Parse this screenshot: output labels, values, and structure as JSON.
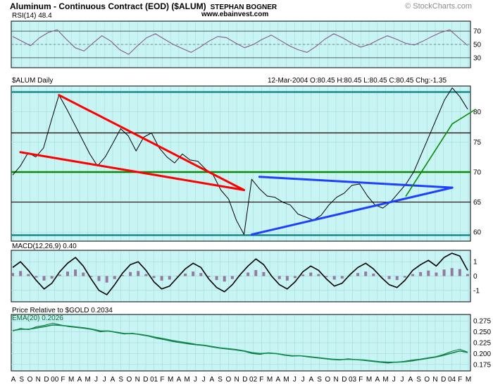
{
  "header": {
    "title": "Aluminum - Continuous Contract (EOD) ($ALUM)",
    "author": "STEPHAN BOGNER",
    "website": "www.ebainvest.com",
    "brand": "© StockCharts.com"
  },
  "colors": {
    "panel_bg": "#c9f4f4",
    "price_line": "#000000",
    "rsi_line": "#8a5a8a",
    "macd_hist": "#8a5a8a",
    "ema_line": "#0a6a3a",
    "channel_teal": "#1a8a8a",
    "support_green": "#0a8a0a",
    "trend_red": "#ff0000",
    "trend_blue": "#2040ff"
  },
  "chart_data": [
    {
      "type": "line",
      "panel": "rsi",
      "label": "RSI(14) 48.4",
      "indicator": "RSI(14)",
      "last_value": 48.4,
      "y_ticks": [
        70,
        50,
        30
      ],
      "ylim": [
        15,
        85
      ],
      "series": [
        {
          "values": [
            62,
            55,
            48,
            60,
            68,
            72,
            58,
            45,
            40,
            52,
            63,
            55,
            42,
            35,
            48,
            60,
            66,
            58,
            50,
            44,
            38,
            46,
            55,
            62,
            60,
            52,
            45,
            50,
            58,
            64,
            56,
            48,
            42,
            38,
            47,
            58,
            66,
            60,
            52,
            46,
            50,
            57,
            63,
            58,
            52,
            49,
            55,
            62,
            68,
            72,
            60,
            48.4
          ]
        }
      ]
    },
    {
      "type": "line",
      "panel": "price",
      "label": "$ALUM Daily",
      "ohlc": "12-Mar-2004 O:80.45 H:80.45 L:80.45 C:80.45 Chg:-1.35",
      "y_ticks": [
        80,
        75,
        70,
        65,
        60
      ],
      "ylim": [
        58.5,
        84.3
      ],
      "horizontal_lines": [
        {
          "value": 83.3,
          "color": "teal"
        },
        {
          "value": 76.5,
          "color": "black"
        },
        {
          "value": 70.0,
          "color": "green"
        },
        {
          "value": 65.0,
          "color": "black"
        },
        {
          "value": 59.5,
          "color": "teal"
        }
      ],
      "x_labels": [
        "A",
        "S",
        "O",
        "N",
        "D",
        "00",
        "F",
        "M",
        "A",
        "M",
        "J",
        "J",
        "A",
        "S",
        "O",
        "N",
        "D",
        "01",
        "F",
        "M",
        "A",
        "M",
        "J",
        "J",
        "A",
        "S",
        "O",
        "N",
        "D",
        "02",
        "F",
        "M",
        "A",
        "M",
        "J",
        "J",
        "A",
        "S",
        "O",
        "N",
        "D",
        "03",
        "F",
        "M",
        "A",
        "M",
        "J",
        "J",
        "A",
        "S",
        "O",
        "N",
        "D",
        "04",
        "F",
        "M"
      ],
      "series": [
        {
          "name": "$ALUM",
          "values": [
            69.5,
            71.0,
            73.2,
            72.5,
            74.0,
            78.5,
            82.8,
            80.5,
            78.0,
            75.5,
            73.0,
            71.0,
            72.5,
            74.8,
            77.2,
            76.0,
            73.5,
            75.8,
            76.5,
            74.0,
            72.5,
            71.5,
            73.0,
            72.0,
            71.8,
            70.5,
            69.5,
            67.0,
            65.5,
            62.0,
            59.6,
            68.8,
            67.2,
            66.0,
            65.8,
            65.0,
            64.5,
            63.0,
            62.5,
            62.0,
            62.8,
            64.5,
            65.8,
            66.5,
            67.8,
            68.0,
            66.0,
            64.5,
            64.0,
            65.0,
            66.5,
            68.0,
            70.0,
            73.0,
            76.0,
            79.0,
            82.0,
            84.0,
            82.5,
            80.45
          ]
        }
      ],
      "trendlines": [
        {
          "color": "red",
          "from": [
            1,
            73.3
          ],
          "to": [
            30,
            67.0
          ]
        },
        {
          "color": "red",
          "from": [
            6,
            82.8
          ],
          "to": [
            30,
            67.0
          ]
        },
        {
          "color": "blue",
          "from": [
            32,
            69.2
          ],
          "to": [
            57,
            67.4
          ]
        },
        {
          "color": "blue",
          "from": [
            31,
            59.6
          ],
          "to": [
            57,
            67.4
          ]
        },
        {
          "color": "green",
          "from": [
            51,
            66.0
          ],
          "to": [
            57,
            78.0
          ]
        },
        {
          "color": "green",
          "from": [
            57,
            78.0
          ],
          "to": [
            60,
            80.4
          ]
        }
      ]
    },
    {
      "type": "line",
      "panel": "macd",
      "label": "MACD(12,26,9) 0.40",
      "indicator": "MACD(12,26,9)",
      "last_value": 0.4,
      "y_ticks": [
        1,
        0,
        -1
      ],
      "ylim": [
        -1.8,
        1.8
      ],
      "series": [
        {
          "values": [
            0.6,
            1.0,
            0.4,
            -0.3,
            -0.9,
            -0.5,
            0.3,
            0.9,
            1.3,
            0.7,
            -0.2,
            -1.0,
            -1.3,
            -0.6,
            0.2,
            0.8,
            1.0,
            0.4,
            -0.4,
            -0.9,
            -0.7,
            -0.1,
            0.5,
            0.9,
            0.6,
            -0.2,
            -0.8,
            -1.1,
            -0.6,
            0.1,
            0.7,
            1.2,
            0.8,
            0.0,
            -0.6,
            -0.9,
            -0.4,
            0.3,
            0.7,
            0.4,
            -0.2,
            -0.7,
            -0.5,
            0.1,
            0.6,
            0.9,
            0.5,
            -0.1,
            -0.6,
            -0.8,
            -0.3,
            0.4,
            0.8,
            1.1,
            0.7,
            1.3,
            1.6,
            1.4,
            0.4
          ]
        }
      ]
    },
    {
      "type": "line",
      "panel": "relative",
      "label": "Price Relative to $GOLD 0.2034",
      "ema_label": "EMA(20) 0.2026",
      "y_ticks": [
        0.275,
        0.25,
        0.225,
        0.2,
        0.175
      ],
      "ylim": [
        0.16,
        0.29
      ],
      "series": [
        {
          "name": "Price Relative to $GOLD",
          "values": [
            0.252,
            0.258,
            0.255,
            0.262,
            0.265,
            0.27,
            0.266,
            0.262,
            0.26,
            0.258,
            0.255,
            0.25,
            0.252,
            0.248,
            0.245,
            0.247,
            0.243,
            0.24,
            0.235,
            0.232,
            0.228,
            0.225,
            0.222,
            0.22,
            0.218,
            0.215,
            0.212,
            0.21,
            0.208,
            0.205,
            0.2,
            0.198,
            0.202,
            0.2,
            0.196,
            0.194,
            0.195,
            0.192,
            0.19,
            0.188,
            0.186,
            0.185,
            0.188,
            0.186,
            0.184,
            0.182,
            0.18,
            0.178,
            0.18,
            0.182,
            0.185,
            0.187,
            0.19,
            0.193,
            0.198,
            0.205,
            0.21,
            0.2034
          ]
        },
        {
          "name": "EMA(20)",
          "values": [
            0.253,
            0.256,
            0.256,
            0.259,
            0.262,
            0.266,
            0.265,
            0.263,
            0.261,
            0.259,
            0.256,
            0.252,
            0.252,
            0.249,
            0.246,
            0.246,
            0.244,
            0.241,
            0.237,
            0.234,
            0.23,
            0.227,
            0.224,
            0.221,
            0.219,
            0.216,
            0.213,
            0.211,
            0.209,
            0.206,
            0.202,
            0.2,
            0.201,
            0.2,
            0.197,
            0.195,
            0.195,
            0.193,
            0.191,
            0.189,
            0.187,
            0.186,
            0.187,
            0.186,
            0.185,
            0.183,
            0.181,
            0.18,
            0.18,
            0.181,
            0.183,
            0.186,
            0.189,
            0.192,
            0.196,
            0.201,
            0.206,
            0.2026
          ]
        }
      ]
    }
  ]
}
